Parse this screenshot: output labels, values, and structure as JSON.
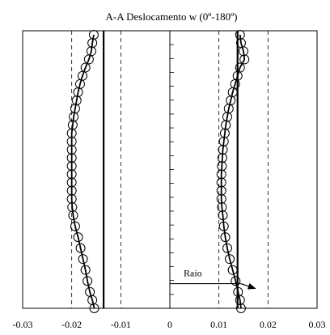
{
  "chart_data": {
    "type": "line",
    "title": "A-A Deslocamento w (0º-180º)",
    "xlabel": "",
    "ylabel": "",
    "xlim": [
      -0.03,
      0.03
    ],
    "x_ticks": [
      "-0.03",
      "-0.02",
      "-0.01",
      "0",
      "0.01",
      "0.02",
      "0.03"
    ],
    "y_axis_labels": "none",
    "grid": "dashed vertical lines at ±0.01 and ±0.02",
    "colors": {
      "line": "#000000",
      "marker": "#000000",
      "background": "#ffffff"
    },
    "series": [
      {
        "side": "left",
        "values": [
          [
            -0.0155,
            1.0
          ],
          [
            -0.0158,
            0.97
          ],
          [
            -0.016,
            0.94
          ],
          [
            -0.0165,
            0.91
          ],
          [
            -0.0172,
            0.88
          ],
          [
            -0.0178,
            0.85
          ],
          [
            -0.0183,
            0.82
          ],
          [
            -0.0187,
            0.79
          ],
          [
            -0.019,
            0.76
          ],
          [
            -0.0193,
            0.73
          ],
          [
            -0.0196,
            0.7
          ],
          [
            -0.0198,
            0.67
          ],
          [
            -0.02,
            0.64
          ],
          [
            -0.02,
            0.61
          ],
          [
            -0.02,
            0.58
          ],
          [
            -0.02,
            0.55
          ],
          [
            -0.02,
            0.52
          ],
          [
            -0.02,
            0.49
          ],
          [
            -0.02,
            0.46
          ],
          [
            -0.02,
            0.43
          ],
          [
            -0.02,
            0.4
          ],
          [
            -0.0199,
            0.37
          ],
          [
            -0.0197,
            0.34
          ],
          [
            -0.0193,
            0.3
          ],
          [
            -0.0187,
            0.26
          ],
          [
            -0.0182,
            0.22
          ],
          [
            -0.0177,
            0.18
          ],
          [
            -0.0172,
            0.14
          ],
          [
            -0.0168,
            0.1
          ],
          [
            -0.0163,
            0.06
          ],
          [
            -0.0158,
            0.03
          ],
          [
            -0.0154,
            0.0
          ]
        ]
      },
      {
        "side": "right",
        "values": [
          [
            0.0143,
            1.0
          ],
          [
            0.0145,
            0.97
          ],
          [
            0.015,
            0.94
          ],
          [
            0.0152,
            0.91
          ],
          [
            0.0143,
            0.88
          ],
          [
            0.0138,
            0.85
          ],
          [
            0.0133,
            0.82
          ],
          [
            0.0128,
            0.79
          ],
          [
            0.0124,
            0.76
          ],
          [
            0.012,
            0.73
          ],
          [
            0.0117,
            0.7
          ],
          [
            0.0114,
            0.67
          ],
          [
            0.0112,
            0.64
          ],
          [
            0.011,
            0.61
          ],
          [
            0.0108,
            0.58
          ],
          [
            0.0107,
            0.55
          ],
          [
            0.0106,
            0.52
          ],
          [
            0.0105,
            0.49
          ],
          [
            0.0105,
            0.46
          ],
          [
            0.0105,
            0.43
          ],
          [
            0.0105,
            0.4
          ],
          [
            0.0106,
            0.37
          ],
          [
            0.0108,
            0.34
          ],
          [
            0.011,
            0.3
          ],
          [
            0.0113,
            0.26
          ],
          [
            0.0117,
            0.22
          ],
          [
            0.0122,
            0.18
          ],
          [
            0.0128,
            0.14
          ],
          [
            0.0134,
            0.1
          ],
          [
            0.0139,
            0.06
          ],
          [
            0.0143,
            0.03
          ],
          [
            0.0145,
            0.0
          ]
        ]
      }
    ],
    "reference_lines": [
      {
        "x": -0.0135
      },
      {
        "x": 0.0138
      }
    ],
    "annotation": {
      "text": "Raio",
      "arrow_from": [
        0.0,
        0.09
      ],
      "arrow_to": [
        0.0138,
        0.09
      ]
    }
  }
}
